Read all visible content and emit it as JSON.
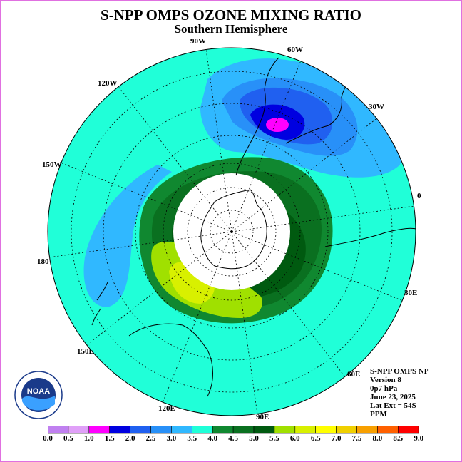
{
  "title": "S-NPP OMPS OZONE MIXING RATIO",
  "subtitle": "Southern Hemisphere",
  "longitude_labels": [
    "90W",
    "60W",
    "120W",
    "30W",
    "150W",
    "0",
    "180",
    "30E",
    "150E",
    "60E",
    "120E",
    "90E"
  ],
  "info": {
    "line1": "S-NPP OMPS NP",
    "line2": "Version 8",
    "line3": "0p7 hPa",
    "line4": "June 23, 2025",
    "line5": "Lat Ext = 54S",
    "line6": "PPM"
  },
  "logo_text": "NOAA",
  "colorbar": {
    "labels": [
      "0.0",
      "0.5",
      "1.0",
      "1.5",
      "2.0",
      "2.5",
      "3.0",
      "3.5",
      "4.0",
      "4.5",
      "5.0",
      "5.5",
      "6.0",
      "6.5",
      "7.0",
      "7.5",
      "8.0",
      "8.5",
      "9.0"
    ],
    "colors": [
      "#c080f0",
      "#e0a0f8",
      "#ff00ff",
      "#0000e0",
      "#2060f0",
      "#2890f8",
      "#30b8ff",
      "#20ffd8",
      "#108830",
      "#0a7020",
      "#005a10",
      "#a0e000",
      "#d8f000",
      "#ffff00",
      "#f0d000",
      "#f8a000",
      "#ff6000",
      "#ff0000",
      "#905030"
    ]
  },
  "map": {
    "background_color": "#20ffd8",
    "polar_night_color": "#ffffff"
  }
}
